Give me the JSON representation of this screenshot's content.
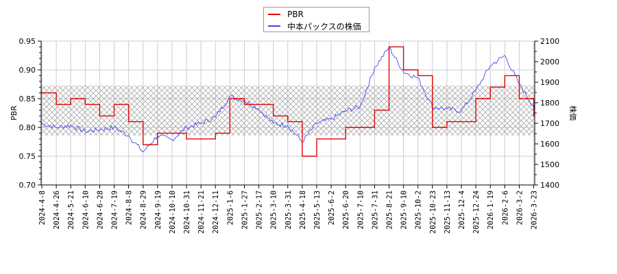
{
  "legend": {
    "items": [
      {
        "label": "PBR",
        "color": "#dd0000"
      },
      {
        "label": "中本パックスの株価",
        "color": "#4444ee"
      }
    ]
  },
  "axes": {
    "left_title": "PBR",
    "right_title": "株価",
    "left_ticks": [
      "0.70",
      "0.75",
      "0.80",
      "0.85",
      "0.90",
      "0.95"
    ],
    "right_ticks": [
      "1400",
      "1500",
      "1600",
      "1700",
      "1800",
      "1900",
      "2000",
      "2100"
    ],
    "x_ticks": [
      "2024-4-8",
      "2024-4-26",
      "2024-5-21",
      "2024-6-10",
      "2024-6-28",
      "2024-7-19",
      "2024-8-8",
      "2024-8-29",
      "2024-9-19",
      "2024-10-10",
      "2024-10-31",
      "2024-11-21",
      "2024-12-11",
      "2025-1-6",
      "2025-1-27",
      "2025-2-17",
      "2025-3-10",
      "2025-3-31",
      "2025-4-18",
      "2025-5-13",
      "2025-6-2",
      "2025-6-20",
      "2025-7-10",
      "2025-7-31",
      "2025-8-21",
      "2025-9-10",
      "2025-10-2",
      "2025-10-23",
      "2025-11-13",
      "2025-12-4",
      "2025-12-24",
      "2026-1-19",
      "2026-2-6",
      "2026-3-2",
      "2026-3-23"
    ]
  },
  "chart_data": {
    "type": "line",
    "title": "",
    "xlabel": "",
    "ylabel": "PBR",
    "y2label": "株価",
    "ylim": [
      0.7,
      0.95
    ],
    "y2lim": [
      1400,
      2100
    ],
    "grid": true,
    "legend_position": "top-center",
    "band": {
      "pbr_range": [
        0.786,
        0.873
      ],
      "style": "cross-hatch gray"
    },
    "categories": [
      "2024-4-8",
      "2024-4-26",
      "2024-5-21",
      "2024-6-10",
      "2024-6-28",
      "2024-7-19",
      "2024-8-8",
      "2024-8-29",
      "2024-9-19",
      "2024-10-10",
      "2024-10-31",
      "2024-11-21",
      "2024-12-11",
      "2025-1-6",
      "2025-1-27",
      "2025-2-17",
      "2025-3-10",
      "2025-3-31",
      "2025-4-18",
      "2025-5-13",
      "2025-6-2",
      "2025-6-20",
      "2025-7-10",
      "2025-7-31",
      "2025-8-21",
      "2025-9-10",
      "2025-10-2",
      "2025-10-23",
      "2025-11-13",
      "2025-12-4",
      "2025-12-24",
      "2026-1-19",
      "2026-2-6",
      "2026-3-2",
      "2026-3-23"
    ],
    "series": [
      {
        "name": "PBR",
        "axis": "left",
        "color": "#dd0000",
        "step": true,
        "values": [
          0.86,
          0.84,
          0.85,
          0.84,
          0.82,
          0.84,
          0.81,
          0.77,
          0.79,
          0.79,
          0.78,
          0.78,
          0.79,
          0.85,
          0.84,
          0.84,
          0.82,
          0.81,
          0.75,
          0.78,
          0.78,
          0.8,
          0.8,
          0.83,
          0.94,
          0.9,
          0.89,
          0.8,
          0.81,
          0.81,
          0.85,
          0.87,
          0.89,
          0.85,
          0.82
        ]
      },
      {
        "name": "中本パックスの株価",
        "axis": "right",
        "color": "#4444ee",
        "values": [
          1700,
          1680,
          1690,
          1660,
          1670,
          1680,
          1640,
          1560,
          1640,
          1620,
          1680,
          1700,
          1730,
          1830,
          1810,
          1770,
          1700,
          1690,
          1610,
          1700,
          1720,
          1760,
          1780,
          1970,
          2070,
          1950,
          1920,
          1780,
          1770,
          1760,
          1860,
          1980,
          2030,
          1890,
          1780
        ]
      }
    ]
  }
}
